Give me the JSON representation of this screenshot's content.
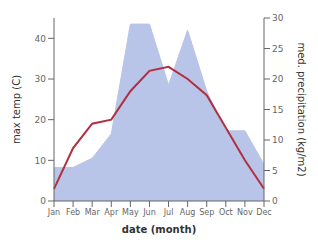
{
  "chart_data": {
    "type": "line",
    "categories": [
      "Jan",
      "Feb",
      "Mar",
      "Apr",
      "May",
      "Jun",
      "Jul",
      "Aug",
      "Sep",
      "Oct",
      "Nov",
      "Dec"
    ],
    "x_label": "date (month)",
    "y_label": "max temp (C)",
    "y2_label": "med. precipitation (kg/m2)",
    "ylim": [
      0,
      45
    ],
    "yticks": [
      0,
      10,
      20,
      30,
      40
    ],
    "y2lim": [
      0,
      30
    ],
    "y2ticks": [
      0,
      5,
      10,
      15,
      20,
      25,
      30
    ],
    "grid": false,
    "series": [
      {
        "type": "area",
        "axis": "y2",
        "color": "#b8c4e8",
        "values": [
          5.5,
          5.5,
          7,
          11,
          29,
          29,
          19,
          28,
          18,
          11.5,
          11.5,
          6
        ]
      },
      {
        "type": "line",
        "color": "#b03040",
        "values": [
          3,
          13,
          19,
          20,
          27,
          32,
          33,
          30,
          26,
          18,
          10,
          3
        ]
      }
    ]
  }
}
